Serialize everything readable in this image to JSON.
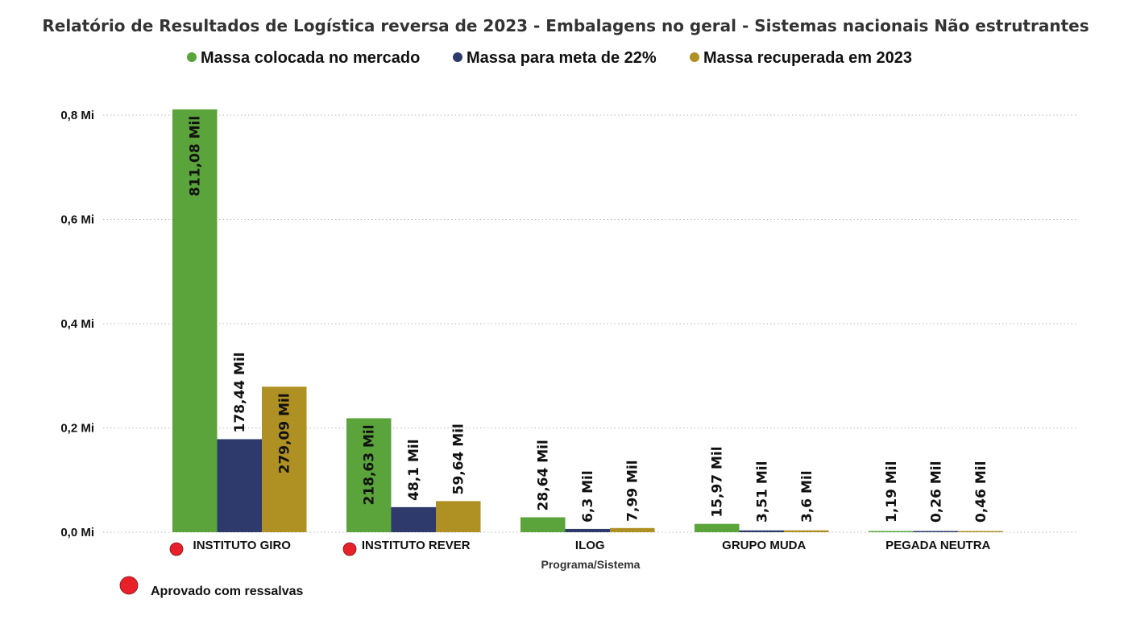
{
  "chart_data": {
    "type": "bar",
    "title": "Relatório de Resultados de Logística reversa de 2023 - Embalagens no geral - Sistemas nacionais Não estrutrantes",
    "xlabel": "Programa/Sistema",
    "ylabel": "",
    "categories": [
      "INSTITUTO GIRO",
      "INSTITUTO REVER",
      "ILOG",
      "GRUPO MUDA",
      "PEGADA NEUTRA"
    ],
    "series": [
      {
        "name": "Massa colocada no mercado",
        "color": "#5BA33B",
        "values": [
          811080,
          218630,
          28640,
          15970,
          1190
        ],
        "labels": [
          "811,08 Mil",
          "218,63 Mil",
          "28,64 Mil",
          "15,97 Mil",
          "1,19 Mil"
        ]
      },
      {
        "name": "Massa para meta de 22%",
        "color": "#2E3A6B",
        "values": [
          178440,
          48100,
          6300,
          3510,
          260
        ],
        "labels": [
          "178,44 Mil",
          "48,1 Mil",
          "6,3 Mil",
          "3,51 Mil",
          "0,26 Mil"
        ]
      },
      {
        "name": "Massa recuperada em 2023",
        "color": "#AE9023",
        "values": [
          279090,
          59640,
          7990,
          3600,
          460
        ],
        "labels": [
          "279,09 Mil",
          "59,64 Mil",
          "7,99 Mil",
          "3,6 Mil",
          "0,46 Mil"
        ]
      }
    ],
    "ylim": [
      0,
      800000
    ],
    "yticks": [
      0,
      200000,
      400000,
      600000,
      800000
    ],
    "ytick_labels": [
      "0,0 Mi",
      "0,2 Mi",
      "0,4 Mi",
      "0,6 Mi",
      "0,8 Mi"
    ],
    "grid": true,
    "legend_position": "top-center",
    "status_markers": [
      {
        "category": "INSTITUTO GIRO",
        "status": "red"
      },
      {
        "category": "INSTITUTO REVER",
        "status": "red"
      }
    ],
    "status_legend": {
      "color": "#E8202A",
      "label": "Aprovado com ressalvas"
    }
  }
}
